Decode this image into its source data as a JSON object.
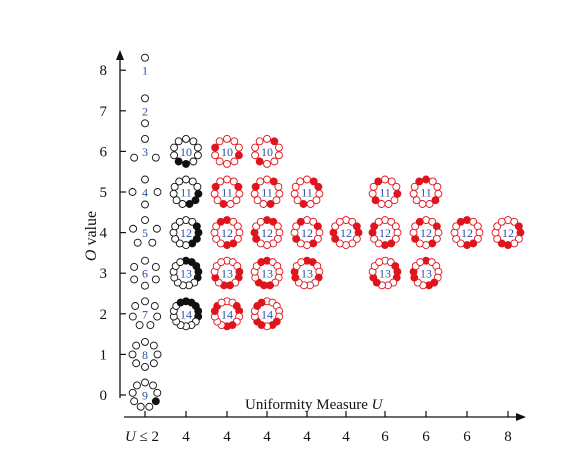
{
  "chart_data": {
    "type": "scatter",
    "description_kind": "ring-pattern grid",
    "ylabel_var": "O",
    "ylabel_rest": " value",
    "xlabel_main": "Uniformity Measure ",
    "xlabel_var": "U",
    "x_tick_labels": [
      "U ≤ 2",
      "4",
      "4",
      "4",
      "4",
      "4",
      "6",
      "6",
      "6",
      "8"
    ],
    "y_ticks": [
      0,
      1,
      2,
      3,
      4,
      5,
      6,
      7,
      8
    ],
    "ylim": [
      0,
      8
    ],
    "columns": [
      {
        "u_label": "U ≤ 2",
        "color": "black",
        "rings": [
          {
            "o": 8,
            "n": 1
          },
          {
            "o": 7,
            "n": 2
          },
          {
            "o": 6,
            "n": 3
          },
          {
            "o": 5,
            "n": 4
          },
          {
            "o": 4,
            "n": 5
          },
          {
            "o": 3,
            "n": 6
          },
          {
            "o": 2,
            "n": 7
          },
          {
            "o": 1,
            "n": 8
          },
          {
            "o": 0,
            "n": 9
          }
        ]
      },
      {
        "u_label": "4",
        "color": "black",
        "rings": [
          {
            "o": 6,
            "n": 10
          },
          {
            "o": 5,
            "n": 11
          },
          {
            "o": 4,
            "n": 12
          },
          {
            "o": 3,
            "n": 13
          },
          {
            "o": 2,
            "n": 14
          }
        ]
      },
      {
        "u_label": "4",
        "color": "red",
        "rings": [
          {
            "o": 6,
            "n": 10
          },
          {
            "o": 5,
            "n": 11
          },
          {
            "o": 4,
            "n": 12
          },
          {
            "o": 3,
            "n": 13
          },
          {
            "o": 2,
            "n": 14
          }
        ]
      },
      {
        "u_label": "4",
        "color": "red",
        "rings": [
          {
            "o": 6,
            "n": 10
          },
          {
            "o": 5,
            "n": 11
          },
          {
            "o": 4,
            "n": 12
          },
          {
            "o": 3,
            "n": 13
          },
          {
            "o": 2,
            "n": 14
          }
        ]
      },
      {
        "u_label": "4",
        "color": "red",
        "rings": [
          {
            "o": 5,
            "n": 11
          },
          {
            "o": 4,
            "n": 12
          },
          {
            "o": 3,
            "n": 13
          }
        ]
      },
      {
        "u_label": "4",
        "color": "red",
        "rings": [
          {
            "o": 4,
            "n": 12
          }
        ]
      },
      {
        "u_label": "6",
        "color": "red",
        "rings": [
          {
            "o": 5,
            "n": 11
          },
          {
            "o": 4,
            "n": 12
          },
          {
            "o": 3,
            "n": 13
          }
        ]
      },
      {
        "u_label": "6",
        "color": "red",
        "rings": [
          {
            "o": 5,
            "n": 11
          },
          {
            "o": 4,
            "n": 12
          },
          {
            "o": 3,
            "n": 13
          }
        ]
      },
      {
        "u_label": "6",
        "color": "red",
        "rings": [
          {
            "o": 4,
            "n": 12
          }
        ]
      },
      {
        "u_label": "8",
        "color": "red",
        "rings": [
          {
            "o": 4,
            "n": 12
          }
        ]
      }
    ],
    "colors": {
      "black": "#111111",
      "red": "#e0141c",
      "number": "#2b4fa8",
      "axis": "#111111"
    }
  }
}
